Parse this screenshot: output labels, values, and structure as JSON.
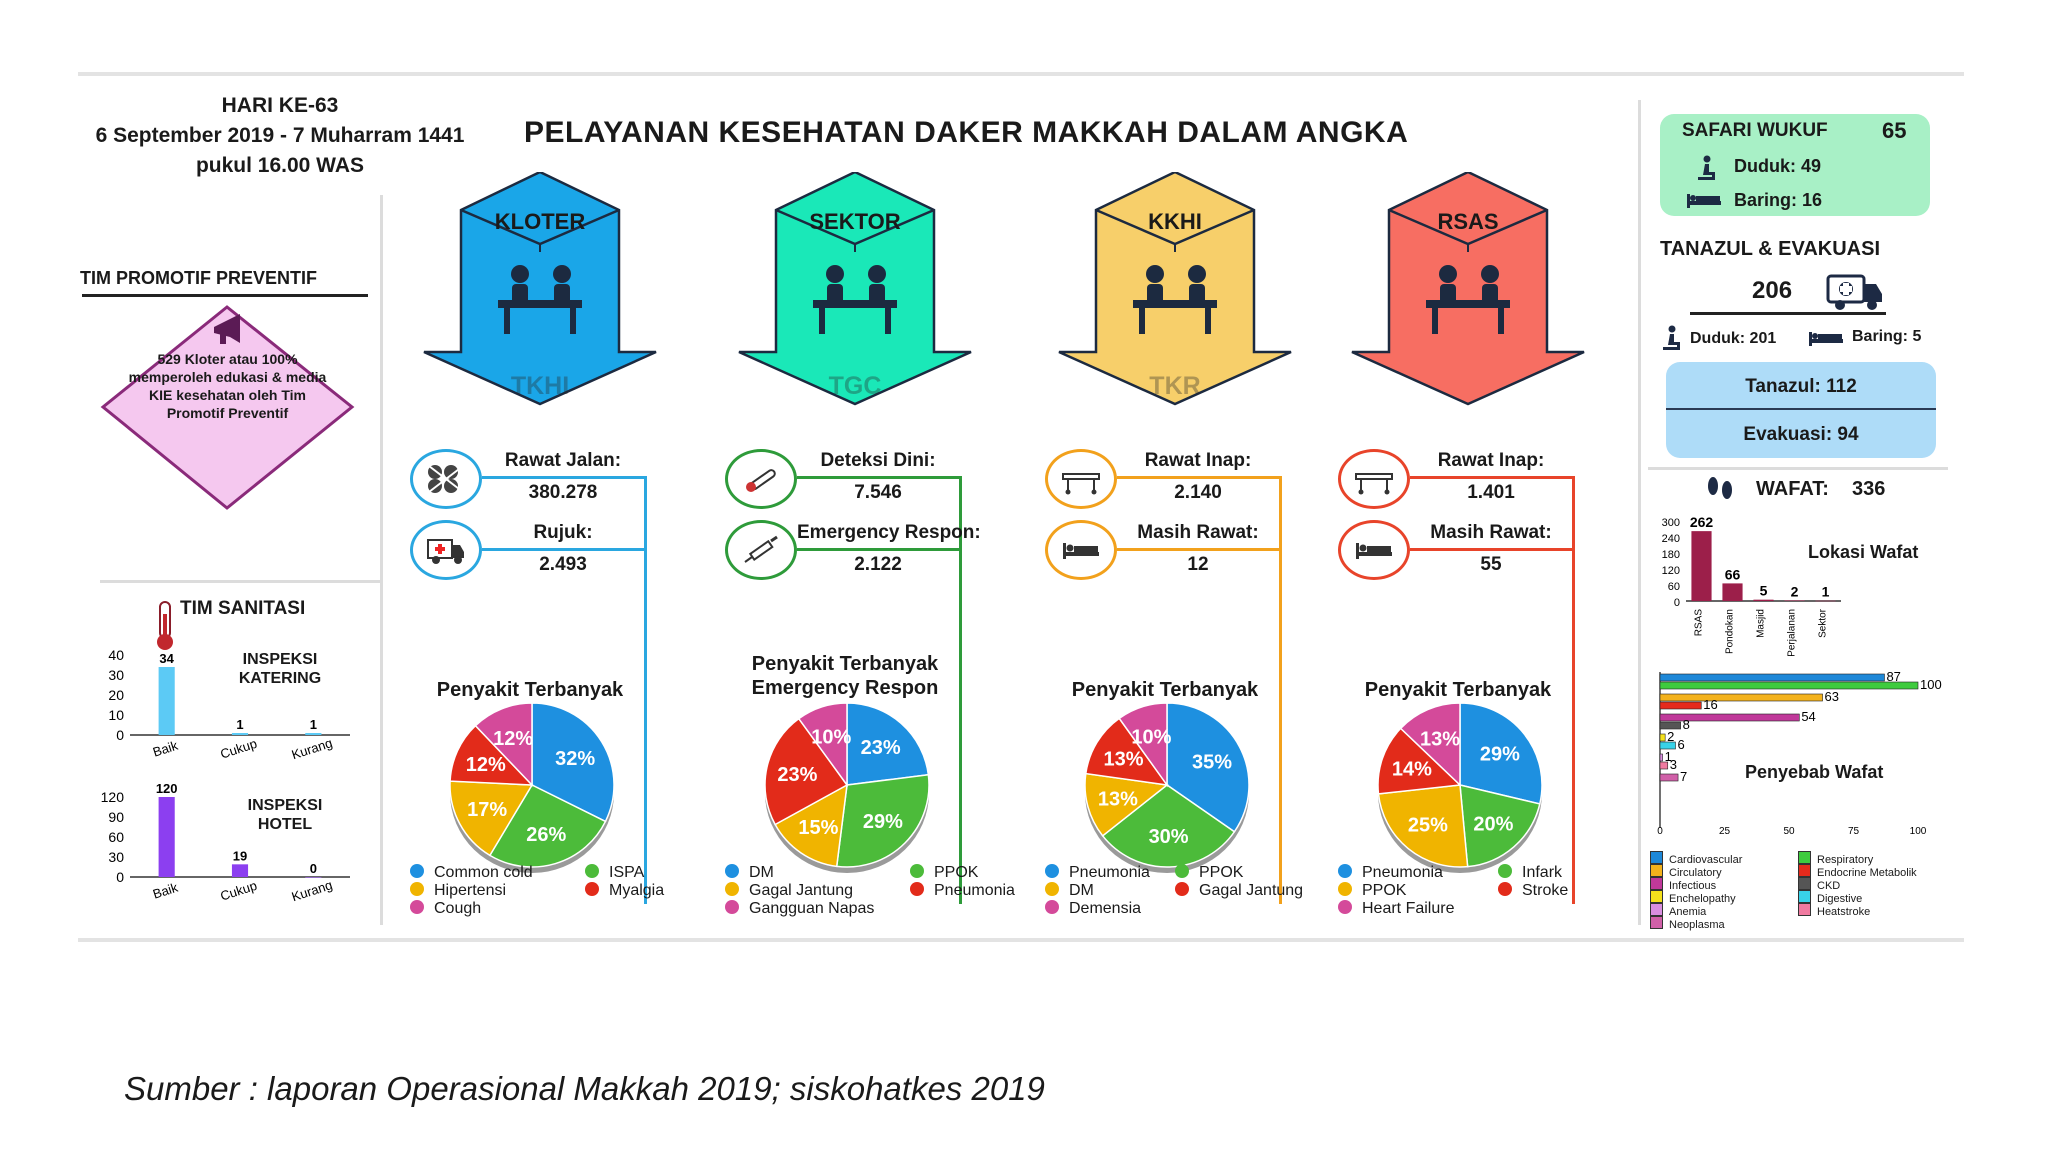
{
  "header": {
    "day": "HARI KE-63",
    "date": "6 September 2019 - 7 Muharram 1441",
    "time": "pukul 16.00 WAS",
    "title": "PELAYANAN KESEHATAN DAKER MAKKAH DALAM ANGKA"
  },
  "promotif": {
    "heading": "TIM PROMOTIF PREVENTIF",
    "text": "529 Kloter atau 100% memperoleh edukasi & media KIE kesehatan oleh Tim Promotif Preventif"
  },
  "sanitasi": {
    "heading": "TIM SANITASI"
  },
  "columns": [
    {
      "label": "KLOTER",
      "unit": "TKHI",
      "color": "#1aa6e8",
      "line_color": "#2aa7e0",
      "stat1_label": "Rawat Jalan:",
      "stat1_value": "380.278",
      "stat2_label": "Rujuk:",
      "stat2_value": "2.493",
      "stat1_icon": "pills-icon",
      "stat2_icon": "ambulance-icon",
      "disease_title": "Penyakit Terbanyak",
      "legend": [
        {
          "name": "Common cold",
          "color": "#1e90e0"
        },
        {
          "name": "ISPA",
          "color": "#4cbb3a"
        },
        {
          "name": "Hipertensi",
          "color": "#f0b400"
        },
        {
          "name": "Myalgia",
          "color": "#e22b1a"
        },
        {
          "name": "Cough",
          "color": "#d44a9a"
        }
      ]
    },
    {
      "label": "SEKTOR",
      "unit": "TGC",
      "color": "#1ae8b8",
      "line_color": "#2e9b3a",
      "stat1_label": "Deteksi Dini:",
      "stat1_value": "7.546",
      "stat2_label": "Emergency Respon:",
      "stat2_value": "2.122",
      "stat1_icon": "thermometer-icon",
      "stat2_icon": "syringe-icon",
      "disease_title": "Penyakit Terbanyak Emergency Respon",
      "legend": [
        {
          "name": "DM",
          "color": "#1e90e0"
        },
        {
          "name": "PPOK",
          "color": "#4cbb3a"
        },
        {
          "name": "Gagal Jantung",
          "color": "#f0b400"
        },
        {
          "name": "Pneumonia",
          "color": "#e22b1a"
        },
        {
          "name": "Gangguan Napas",
          "color": "#d44a9a"
        }
      ]
    },
    {
      "label": "KKHI",
      "unit": "TKR",
      "color": "#f7cf6a",
      "line_color": "#f2a11c",
      "stat1_label": "Rawat Inap:",
      "stat1_value": "2.140",
      "stat2_label": "Masih Rawat:",
      "stat2_value": "12",
      "stat1_icon": "stretcher-icon",
      "stat2_icon": "bed-icon",
      "disease_title": "Penyakit Terbanyak",
      "legend": [
        {
          "name": "Pneumonia",
          "color": "#1e90e0"
        },
        {
          "name": "PPOK",
          "color": "#4cbb3a"
        },
        {
          "name": "DM",
          "color": "#f0b400"
        },
        {
          "name": "Gagal Jantung",
          "color": "#e22b1a"
        },
        {
          "name": "Demensia",
          "color": "#d44a9a"
        }
      ]
    },
    {
      "label": "RSAS",
      "unit": "",
      "color": "#f76e62",
      "line_color": "#e8442a",
      "stat1_label": "Rawat Inap:",
      "stat1_value": "1.401",
      "stat2_label": "Masih Rawat:",
      "stat2_value": "55",
      "stat1_icon": "stretcher-icon",
      "stat2_icon": "bed-icon",
      "disease_title": "Penyakit Terbanyak",
      "legend": [
        {
          "name": "Pneumonia",
          "color": "#1e90e0"
        },
        {
          "name": "Infark",
          "color": "#4cbb3a"
        },
        {
          "name": "PPOK",
          "color": "#f0b400"
        },
        {
          "name": "Stroke",
          "color": "#e22b1a"
        },
        {
          "name": "Heart Failure",
          "color": "#d44a9a"
        }
      ]
    }
  ],
  "safari": {
    "title": "SAFARI WUKUF",
    "total": "65",
    "duduk": "Duduk: 49",
    "baring": "Baring: 16"
  },
  "tanazul": {
    "title": "TANAZUL & EVAKUASI",
    "total": "206",
    "duduk": "Duduk: 201",
    "baring": "Baring: 5",
    "tanazul": "Tanazul: 112",
    "evakuasi": "Evakuasi:  94"
  },
  "wafat": {
    "title": "WAFAT:",
    "total": "336"
  },
  "source": "Sumber : laporan Operasional Makkah 2019; siskohatkes 2019",
  "chart_data": [
    {
      "type": "bar",
      "title": "INSPEKSI KATERING",
      "categories": [
        "Baik",
        "Cukup",
        "Kurang"
      ],
      "values": [
        34,
        1,
        1
      ],
      "ylim": [
        0,
        40
      ],
      "yticks": [
        0,
        10,
        20,
        30,
        40
      ],
      "color": "#5ccaf5"
    },
    {
      "type": "bar",
      "title": "INSPEKSI HOTEL",
      "categories": [
        "Baik",
        "Cukup",
        "Kurang"
      ],
      "values": [
        120,
        19,
        0
      ],
      "ylim": [
        0,
        120
      ],
      "yticks": [
        0,
        30,
        60,
        90,
        120
      ],
      "color": "#8c3ff0"
    },
    {
      "type": "pie",
      "title": "Penyakit Terbanyak",
      "labels": [
        "Common cold",
        "ISPA",
        "Hipertensi",
        "Myalgia",
        "Cough"
      ],
      "values": [
        32,
        26,
        17,
        12,
        12
      ]
    },
    {
      "type": "pie",
      "title": "Penyakit Terbanyak Emergency Respon",
      "labels": [
        "DM",
        "PPOK",
        "Gagal Jantung",
        "Pneumonia",
        "Gangguan Napas"
      ],
      "values": [
        23,
        29,
        15,
        23,
        10
      ]
    },
    {
      "type": "pie",
      "title": "Penyakit Terbanyak",
      "labels": [
        "Pneumonia",
        "PPOK",
        "DM",
        "Gagal Jantung",
        "Demensia"
      ],
      "values": [
        35,
        30,
        13,
        13,
        10
      ]
    },
    {
      "type": "pie",
      "title": "Penyakit Terbanyak",
      "labels": [
        "Pneumonia",
        "Infark",
        "PPOK",
        "Stroke",
        "Heart Failure"
      ],
      "values": [
        29,
        20,
        25,
        14,
        13
      ]
    },
    {
      "type": "bar",
      "title": "Lokasi Wafat",
      "categories": [
        "RSAS",
        "Pondokan",
        "Masjid",
        "Perjalanan",
        "Sektor"
      ],
      "values": [
        262,
        66,
        5,
        2,
        1
      ],
      "ylim": [
        0,
        300
      ],
      "yticks": [
        0,
        60,
        120,
        180,
        240,
        300
      ],
      "color": "#9c1f4a"
    },
    {
      "type": "bar",
      "orientation": "horizontal",
      "title": "Penyebab Wafat",
      "series": [
        {
          "name": "Cardiovascular",
          "value": 87,
          "color": "#1e88d8"
        },
        {
          "name": "Respiratory",
          "value": 100,
          "color": "#3ecb3e"
        },
        {
          "name": "Circulatory",
          "value": 63,
          "color": "#f3b21c"
        },
        {
          "name": "Endocrine Metabolik",
          "value": 16,
          "color": "#e52a1c"
        },
        {
          "name": "Infectious",
          "value": 54,
          "color": "#c0399a"
        },
        {
          "name": "CKD",
          "value": 8,
          "color": "#555555"
        },
        {
          "name": "Enchelopathy",
          "value": 2,
          "color": "#f5e11c"
        },
        {
          "name": "Digestive",
          "value": 6,
          "color": "#38d2e8"
        },
        {
          "name": "Anemia",
          "value": 1,
          "color": "#d98ee0"
        },
        {
          "name": "Heatstroke",
          "value": 3,
          "color": "#f07aa0"
        },
        {
          "name": "Neoplasma",
          "value": 7,
          "color": "#d060a8"
        }
      ],
      "xlim": [
        0,
        100
      ],
      "xticks": [
        0,
        25,
        50,
        75,
        100
      ]
    }
  ]
}
